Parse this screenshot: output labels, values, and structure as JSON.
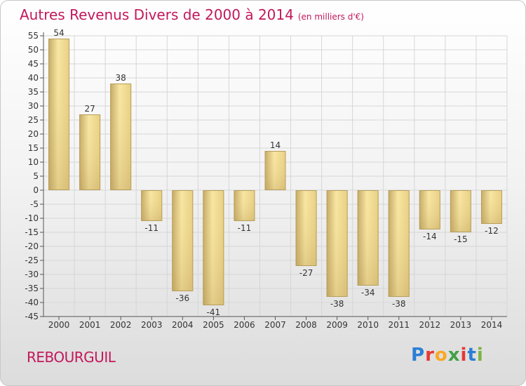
{
  "header": {
    "title": "Autres Revenus Divers de 2000 à 2014",
    "unit": "(en milliers d'€)"
  },
  "footer": {
    "commune": "REBOURGUIL",
    "brand_letters": [
      "P",
      "r",
      "o",
      "x",
      "i",
      "t",
      "i"
    ],
    "brand_colors": [
      "#2a7fd4",
      "#e53935",
      "#f9a825",
      "#43a047",
      "#e53935",
      "#2a7fd4",
      "#7cb342"
    ]
  },
  "colors": {
    "title": "#c2185b",
    "bar_light": "#f7e29a",
    "bar_dark": "#c7ad69",
    "grid": "#d6d6d6"
  },
  "chart_data": {
    "type": "bar",
    "categories": [
      "2000",
      "2001",
      "2002",
      "2003",
      "2004",
      "2005",
      "2006",
      "2007",
      "2008",
      "2009",
      "2010",
      "2011",
      "2012",
      "2013",
      "2014"
    ],
    "values": [
      54,
      27,
      38,
      -11,
      -36,
      -41,
      -11,
      14,
      -27,
      -38,
      -34,
      -38,
      -14,
      -15,
      -12
    ],
    "labels": [
      "54",
      "27",
      "38",
      "-11",
      "-36",
      "-41",
      "-11",
      "14",
      "-27",
      "-38",
      "-34",
      "-38",
      "-14",
      "-15",
      "-12"
    ],
    "title": "Autres Revenus Divers de 2000 à 2014",
    "xlabel": "",
    "ylabel": "",
    "ylim": [
      -45,
      55
    ],
    "yticks": [
      55,
      50,
      45,
      40,
      35,
      30,
      25,
      20,
      15,
      10,
      5,
      0,
      -5,
      -10,
      -15,
      -20,
      -25,
      -30,
      -35,
      -40,
      -45
    ],
    "grid": true
  }
}
